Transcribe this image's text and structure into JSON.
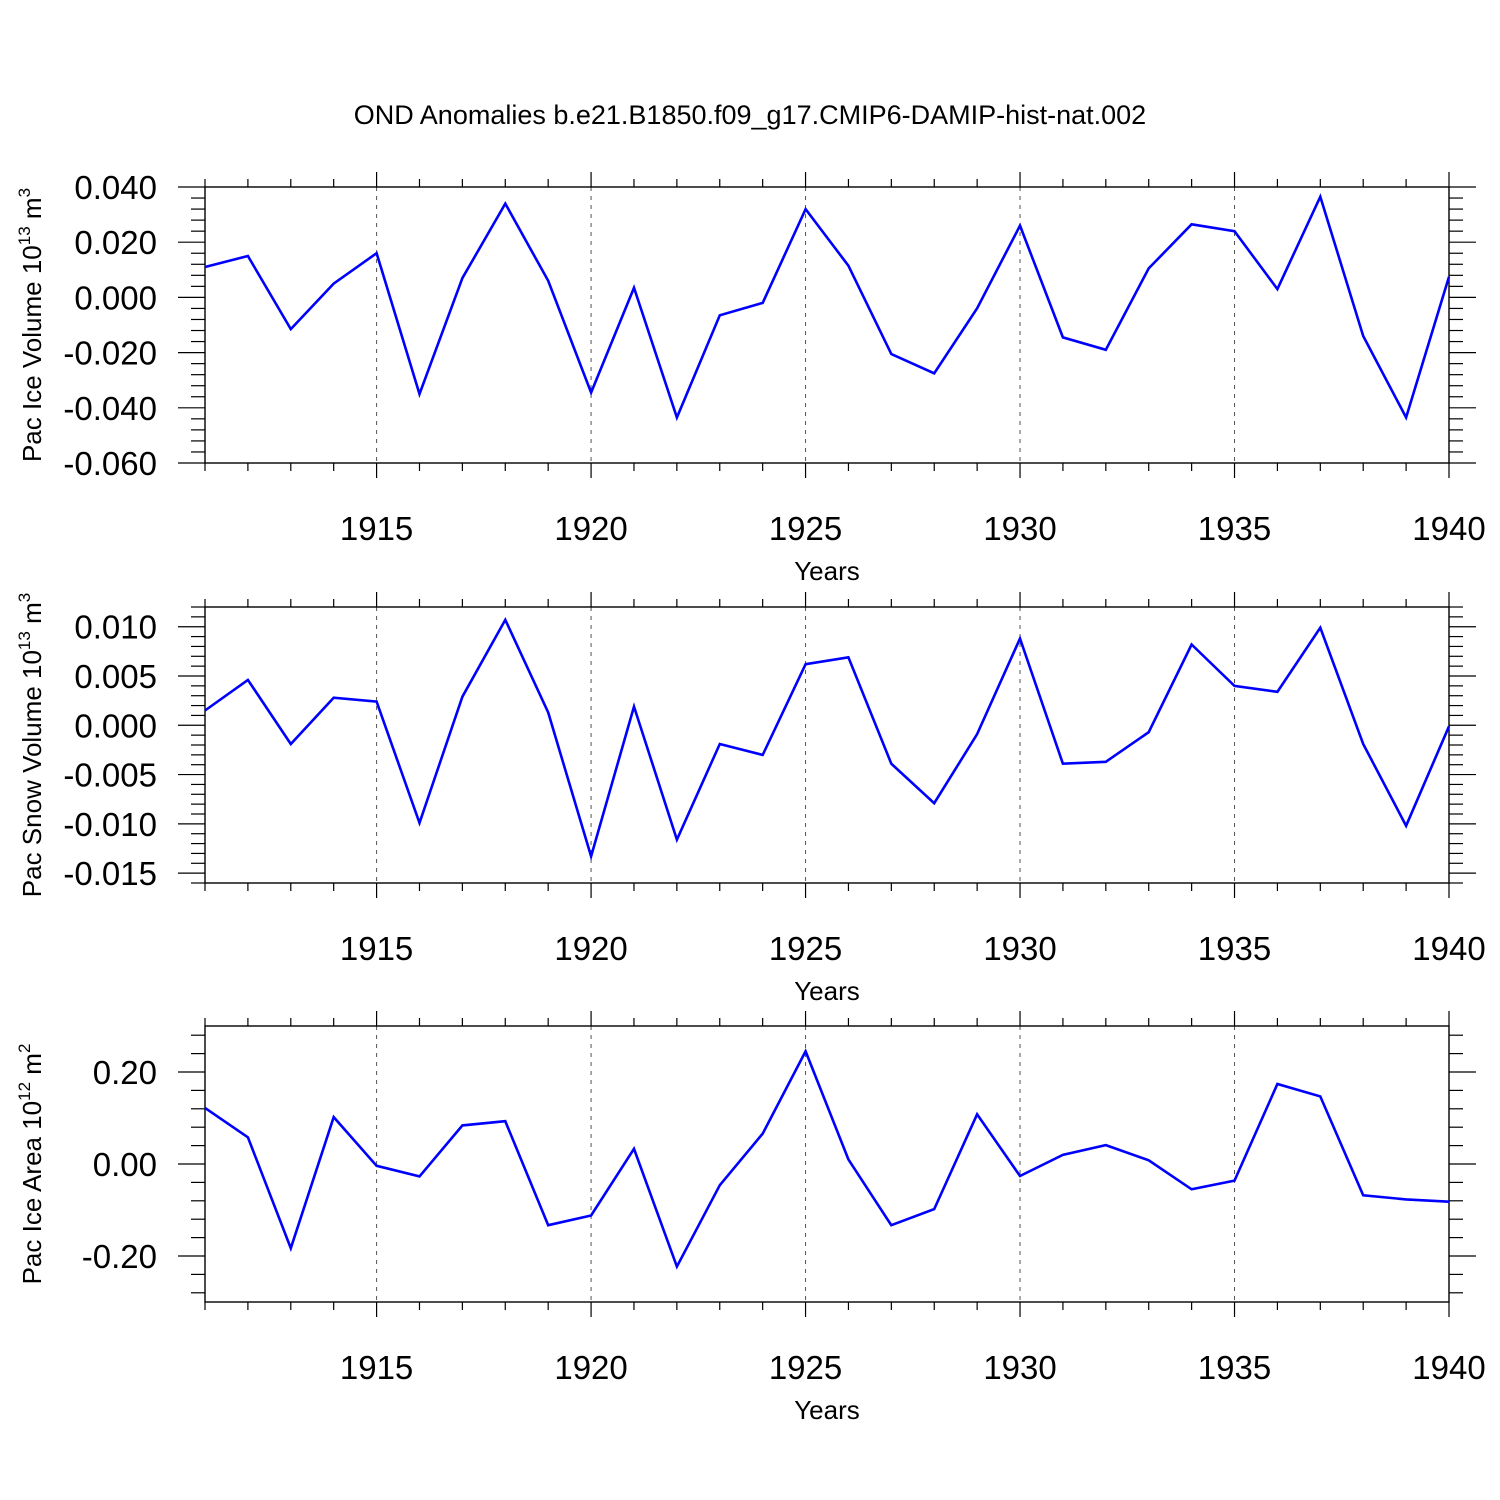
{
  "title": "OND Anomalies b.e21.B1850.f09_g17.CMIP6-DAMIP-hist-nat.002",
  "x_years": [
    1911,
    1912,
    1913,
    1914,
    1915,
    1916,
    1917,
    1918,
    1919,
    1920,
    1921,
    1922,
    1923,
    1924,
    1925,
    1926,
    1927,
    1928,
    1929,
    1930,
    1931,
    1932,
    1933,
    1934,
    1935,
    1936,
    1937,
    1938,
    1939,
    1940
  ],
  "chart_data": [
    {
      "type": "line",
      "title": "",
      "xlabel": "Years",
      "ylabel_main": "Pac Ice Volume 10",
      "ylabel_exp": "13",
      "ylabel_unit": " m",
      "ylabel_unit_exp": "3",
      "xlim": [
        1911,
        1940
      ],
      "ylim": [
        -0.06,
        0.04
      ],
      "yticks": [
        -0.06,
        -0.04,
        -0.02,
        0.0,
        0.02,
        0.04
      ],
      "ytick_labels": [
        "-0.060",
        "-0.040",
        "-0.020",
        "0.000",
        "0.020",
        "0.040"
      ],
      "xticks": [
        1915,
        1920,
        1925,
        1930,
        1935,
        1940
      ],
      "xtick_labels": [
        "1915",
        "1920",
        "1925",
        "1930",
        "1935",
        "1940"
      ],
      "values": [
        0.011,
        0.015,
        -0.0115,
        0.005,
        0.016,
        -0.035,
        0.007,
        0.034,
        0.006,
        -0.0345,
        0.0035,
        -0.0435,
        -0.0065,
        -0.002,
        0.032,
        0.0115,
        -0.0205,
        -0.0275,
        -0.004,
        0.026,
        -0.0145,
        -0.019,
        0.0105,
        0.0265,
        0.024,
        0.003,
        0.0365,
        -0.014,
        -0.0435,
        0.0075
      ]
    },
    {
      "type": "line",
      "title": "",
      "xlabel": "Years",
      "ylabel_main": "Pac Snow Volume 10",
      "ylabel_exp": "13",
      "ylabel_unit": " m",
      "ylabel_unit_exp": "3",
      "xlim": [
        1911,
        1940
      ],
      "ylim": [
        -0.016,
        0.012
      ],
      "yticks": [
        -0.015,
        -0.01,
        -0.005,
        0.0,
        0.005,
        0.01
      ],
      "ytick_labels": [
        "-0.015",
        "-0.010",
        "-0.005",
        "0.000",
        "0.005",
        "0.010"
      ],
      "xticks": [
        1915,
        1920,
        1925,
        1930,
        1935,
        1940
      ],
      "xtick_labels": [
        "1915",
        "1920",
        "1925",
        "1930",
        "1935",
        "1940"
      ],
      "values": [
        0.0015,
        0.0046,
        -0.0019,
        0.0028,
        0.0024,
        -0.0099,
        0.0029,
        0.0107,
        0.0013,
        -0.0133,
        0.0019,
        -0.0116,
        -0.0019,
        -0.003,
        0.0062,
        0.0069,
        -0.0039,
        -0.0079,
        -0.0009,
        0.0088,
        -0.0039,
        -0.0037,
        -0.0007,
        0.0082,
        0.004,
        0.0034,
        0.0099,
        -0.0019,
        -0.0102,
        -0.0001
      ]
    },
    {
      "type": "line",
      "title": "",
      "xlabel": "Years",
      "ylabel_main": "Pac Ice Area 10",
      "ylabel_exp": "12",
      "ylabel_unit": " m",
      "ylabel_unit_exp": "2",
      "xlim": [
        1911,
        1940
      ],
      "ylim": [
        -0.3,
        0.3
      ],
      "yticks": [
        -0.2,
        0.0,
        0.2
      ],
      "ytick_labels": [
        "-0.20",
        "0.00",
        "0.20"
      ],
      "xticks": [
        1915,
        1920,
        1925,
        1930,
        1935,
        1940
      ],
      "xtick_labels": [
        "1915",
        "1920",
        "1925",
        "1930",
        "1935",
        "1940"
      ],
      "values": [
        0.122,
        0.058,
        -0.183,
        0.102,
        -0.004,
        -0.027,
        0.084,
        0.093,
        -0.133,
        -0.112,
        0.033,
        -0.223,
        -0.046,
        0.066,
        0.245,
        0.01,
        -0.133,
        -0.098,
        0.108,
        -0.026,
        0.02,
        0.041,
        0.008,
        -0.055,
        -0.036,
        0.174,
        0.147,
        -0.068,
        -0.077,
        -0.082
      ]
    }
  ]
}
